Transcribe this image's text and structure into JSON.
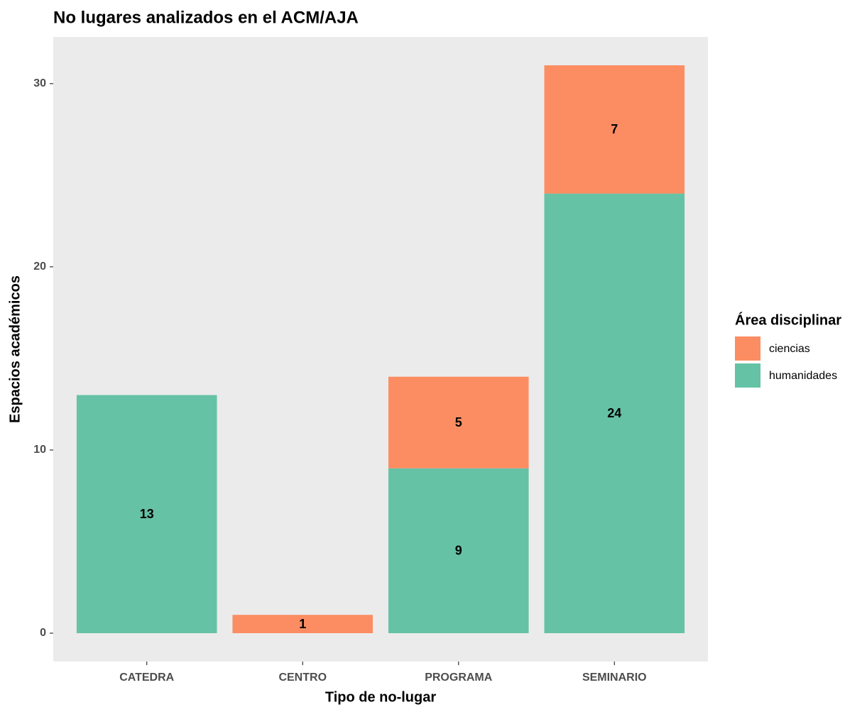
{
  "chart_data": {
    "type": "stacked_bar",
    "title": "No lugares analizados en el ACM/AJA",
    "x_label": "Tipo de no-lugar",
    "y_label": "Espacios académicos",
    "legend_title": "Área disciplinar",
    "categories": [
      "CATEDRA",
      "CENTRO",
      "PROGRAMA",
      "SEMINARIO"
    ],
    "series": [
      {
        "name": "ciencias",
        "color": "#FC8D62",
        "values": [
          null,
          1,
          5,
          7
        ]
      },
      {
        "name": "humanidades",
        "color": "#66C2A5",
        "values": [
          13,
          null,
          9,
          24
        ]
      }
    ],
    "ylim": [
      -1.55,
      32.55
    ],
    "yticks": [
      0,
      10,
      20,
      30
    ],
    "grid": false,
    "legend": "right"
  }
}
